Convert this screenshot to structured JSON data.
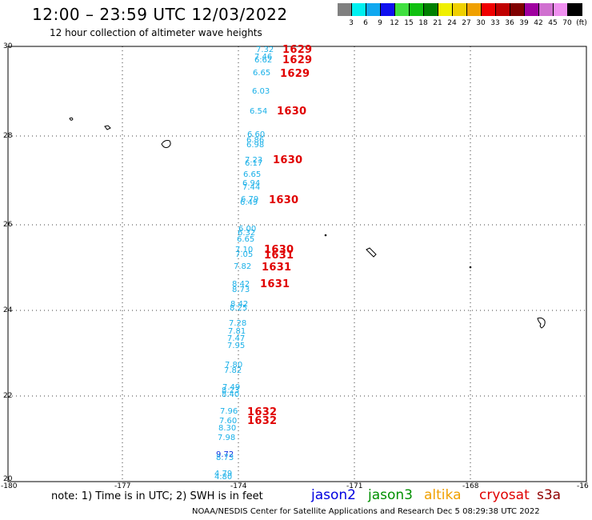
{
  "header": {
    "title": "12:00 – 23:59 UTC 12/03/2022",
    "subtitle": "12 hour collection of altimeter wave heights"
  },
  "legend": {
    "colors": [
      "#808080",
      "#00f0f0",
      "#10a8f0",
      "#1010f0",
      "#40e040",
      "#10c010",
      "#008000",
      "#f0f000",
      "#f0d000",
      "#f0a000",
      "#f00000",
      "#c00000",
      "#800000",
      "#a000a0",
      "#d070d0",
      "#f090f0",
      "#000000"
    ],
    "labels": [
      "3",
      "6",
      "9",
      "12",
      "15",
      "18",
      "21",
      "24",
      "27",
      "30",
      "33",
      "36",
      "39",
      "42",
      "45",
      "70",
      "(ft)"
    ]
  },
  "map": {
    "lat_labels": [
      "30",
      "28",
      "26",
      "24",
      "22",
      "20"
    ],
    "lon_labels": [
      "-180",
      "-177",
      "-174",
      "-171",
      "-168",
      "-16"
    ],
    "swh_values": [
      "7.32",
      "7.46",
      "6.62",
      "6.65",
      "6.03",
      "6.54",
      "6.60",
      "6.86",
      "6.98",
      "7.23",
      "6.17",
      "6.65",
      "6.94",
      "7.44",
      "6.79",
      "6.49",
      "6.00",
      "6.32",
      "6.65",
      "7.10",
      "7.05",
      "7.82",
      "8.42",
      "8.73",
      "8.42",
      "8.25",
      "7.28",
      "7.81",
      "7.47",
      "7.95",
      "7.80",
      "7.82",
      "7.49",
      "8.23",
      "8.40",
      "7.96",
      "7.60",
      "8.30",
      "7.98",
      "9.72",
      "8.73",
      "4.79",
      "4.80"
    ],
    "time_labels": [
      "1629",
      "1629",
      "1629",
      "1630",
      "1630",
      "1630",
      "1630",
      "1631",
      "1631",
      "1631",
      "1632",
      "1632"
    ]
  },
  "footer": {
    "note": "note: 1) Time is in UTC; 2) SWH is in feet",
    "satellites": [
      {
        "name": "jason2",
        "color": "#0000e0"
      },
      {
        "name": "jason3",
        "color": "#009000"
      },
      {
        "name": "altika",
        "color": "#f0a000"
      },
      {
        "name": "cryosat",
        "color": "#e00000"
      },
      {
        "name": "s3a",
        "color": "#900000"
      }
    ],
    "credit": "NOAA/NESDIS Center for Satellite Applications and Research    Dec  5 08:29:38 UTC 2022"
  }
}
